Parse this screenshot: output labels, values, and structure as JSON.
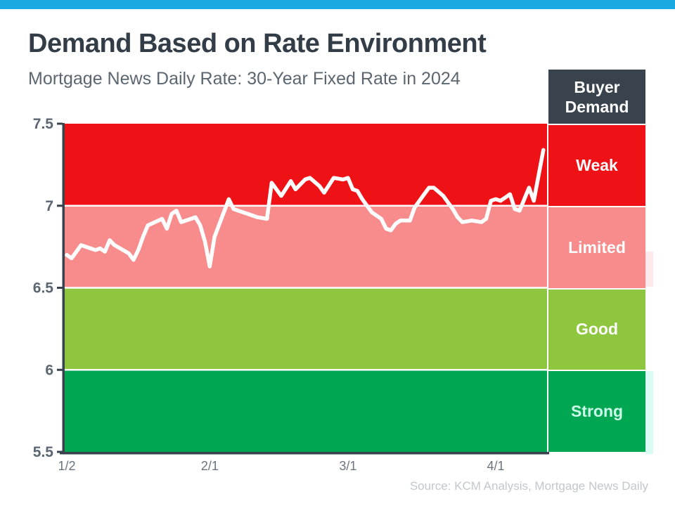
{
  "page": {
    "title": "Demand Based on Rate Environment",
    "subtitle": "Mortgage News Daily Rate: 30-Year Fixed Rate in 2024",
    "source": "Source: KCM Analysis, Mortgage News Daily",
    "accent_color": "#1ba9e1"
  },
  "legend": {
    "header": "Buyer Demand",
    "header_bg": "#39434e"
  },
  "chart_data": {
    "type": "line",
    "title": "Demand Based on Rate Environment",
    "subtitle": "Mortgage News Daily Rate: 30-Year Fixed Rate in 2024",
    "xlabel": "",
    "ylabel": "",
    "x_ticks": [
      {
        "label": "1/2",
        "day": 2
      },
      {
        "label": "2/1",
        "day": 32
      },
      {
        "label": "3/1",
        "day": 61
      },
      {
        "label": "4/1",
        "day": 92
      }
    ],
    "x_range_days": [
      2,
      102
    ],
    "y_ticks": [
      {
        "label": "7.5",
        "value": 7.5
      },
      {
        "label": "7",
        "value": 7.0
      },
      {
        "label": "6.5",
        "value": 6.5
      },
      {
        "label": "6",
        "value": 6.0
      },
      {
        "label": "5.5",
        "value": 5.5
      }
    ],
    "y_range": [
      5.5,
      7.5
    ],
    "grid": "white band separators",
    "legend_position": "right column",
    "bands": [
      {
        "label": "Weak",
        "from": 7.0,
        "to": 7.5,
        "color": "#ee1217",
        "text_color": "#ffffff"
      },
      {
        "label": "Limited",
        "from": 6.5,
        "to": 7.0,
        "color": "#f88b8b",
        "text_color": "#ffffff"
      },
      {
        "label": "Good",
        "from": 6.0,
        "to": 6.5,
        "color": "#8fc640",
        "text_color": "#ffffff"
      },
      {
        "label": "Strong",
        "from": 5.5,
        "to": 6.0,
        "color": "#00a651",
        "text_color": "#ccfbea"
      }
    ],
    "series": [
      {
        "name": "30-Year Fixed Rate 2024",
        "color": "#ffffff",
        "points": [
          [
            2,
            6.7
          ],
          [
            3,
            6.68
          ],
          [
            4,
            6.72
          ],
          [
            5,
            6.76
          ],
          [
            8,
            6.73
          ],
          [
            9,
            6.74
          ],
          [
            10,
            6.72
          ],
          [
            11,
            6.79
          ],
          [
            12,
            6.76
          ],
          [
            15,
            6.71
          ],
          [
            16,
            6.67
          ],
          [
            17,
            6.73
          ],
          [
            18,
            6.81
          ],
          [
            19,
            6.88
          ],
          [
            22,
            6.92
          ],
          [
            23,
            6.86
          ],
          [
            24,
            6.95
          ],
          [
            25,
            6.97
          ],
          [
            26,
            6.9
          ],
          [
            29,
            6.93
          ],
          [
            30,
            6.88
          ],
          [
            31,
            6.78
          ],
          [
            32,
            6.63
          ],
          [
            33,
            6.81
          ],
          [
            36,
            7.04
          ],
          [
            37,
            6.98
          ],
          [
            38,
            6.97
          ],
          [
            39,
            6.96
          ],
          [
            40,
            6.95
          ],
          [
            42,
            6.93
          ],
          [
            44,
            6.92
          ],
          [
            45,
            7.14
          ],
          [
            47,
            7.06
          ],
          [
            49,
            7.15
          ],
          [
            50,
            7.1
          ],
          [
            52,
            7.16
          ],
          [
            53,
            7.17
          ],
          [
            55,
            7.12
          ],
          [
            56,
            7.08
          ],
          [
            58,
            7.17
          ],
          [
            60,
            7.16
          ],
          [
            61,
            7.17
          ],
          [
            62,
            7.1
          ],
          [
            63,
            7.09
          ],
          [
            64,
            7.04
          ],
          [
            66,
            6.96
          ],
          [
            68,
            6.92
          ],
          [
            69,
            6.86
          ],
          [
            70,
            6.85
          ],
          [
            71,
            6.89
          ],
          [
            72,
            6.91
          ],
          [
            74,
            6.91
          ],
          [
            75,
            6.99
          ],
          [
            77,
            7.07
          ],
          [
            78,
            7.11
          ],
          [
            79,
            7.11
          ],
          [
            81,
            7.06
          ],
          [
            82,
            7.02
          ],
          [
            83,
            6.98
          ],
          [
            84,
            6.93
          ],
          [
            85,
            6.9
          ],
          [
            87,
            6.91
          ],
          [
            89,
            6.9
          ],
          [
            90,
            6.92
          ],
          [
            91,
            7.03
          ],
          [
            92,
            7.04
          ],
          [
            93,
            7.03
          ],
          [
            94,
            7.05
          ],
          [
            95,
            7.07
          ],
          [
            96,
            6.98
          ],
          [
            97,
            6.97
          ],
          [
            99,
            7.11
          ],
          [
            100,
            7.03
          ],
          [
            102,
            7.34
          ]
        ]
      }
    ]
  }
}
